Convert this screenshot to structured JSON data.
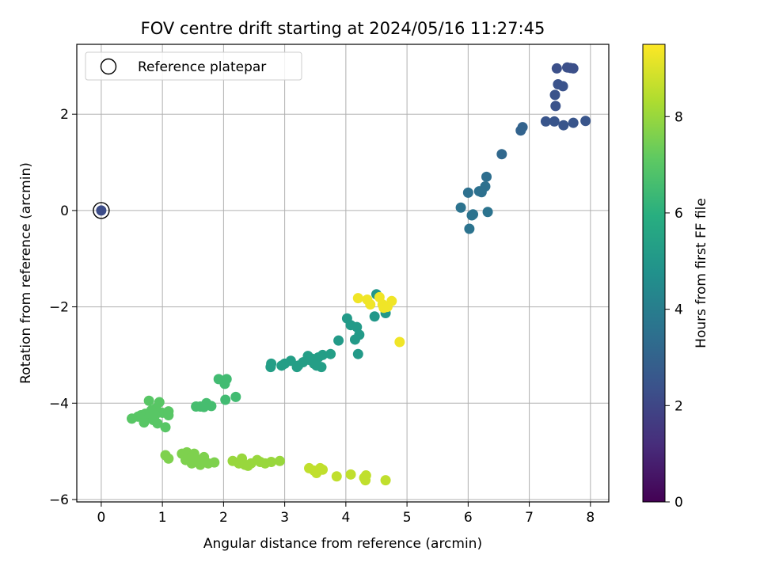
{
  "chart_data": {
    "type": "scatter",
    "title": "FOV centre drift starting at 2024/05/16 11:27:45",
    "xlabel": "Angular distance from reference (arcmin)",
    "ylabel": "Rotation from reference (arcmin)",
    "xlim": [
      -0.4,
      8.3
    ],
    "ylim": [
      -6.05,
      3.45
    ],
    "xticks": [
      0,
      1,
      2,
      3,
      4,
      5,
      6,
      7,
      8
    ],
    "yticks": [
      -6,
      -4,
      -2,
      0,
      2
    ],
    "grid": true,
    "legend": {
      "placement": "top-left",
      "entries": [
        "Reference platepar"
      ]
    },
    "colorbar": {
      "label": "Hours from first FF file",
      "range": [
        0,
        9.5
      ],
      "ticks": [
        0,
        2,
        4,
        6,
        8
      ],
      "colormap": "viridis"
    },
    "reference_point": {
      "x": 0,
      "y": 0,
      "hours": 2.2
    },
    "points": [
      [
        7.45,
        2.95,
        2.3
      ],
      [
        7.62,
        2.97,
        2.3
      ],
      [
        7.67,
        2.96,
        2.3
      ],
      [
        7.72,
        2.95,
        2.3
      ],
      [
        7.47,
        2.62,
        2.4
      ],
      [
        7.55,
        2.58,
        2.4
      ],
      [
        7.42,
        2.4,
        2.4
      ],
      [
        7.43,
        2.17,
        2.4
      ],
      [
        7.27,
        1.85,
        2.5
      ],
      [
        7.41,
        1.85,
        2.5
      ],
      [
        7.56,
        1.77,
        2.5
      ],
      [
        7.72,
        1.82,
        2.5
      ],
      [
        7.92,
        1.86,
        2.5
      ],
      [
        6.86,
        1.66,
        3.0
      ],
      [
        6.89,
        1.73,
        3.0
      ],
      [
        6.55,
        1.17,
        3.2
      ],
      [
        6.3,
        0.7,
        3.4
      ],
      [
        6.28,
        0.5,
        3.5
      ],
      [
        6.18,
        0.4,
        3.5
      ],
      [
        6.22,
        0.38,
        3.5
      ],
      [
        6.0,
        0.37,
        3.5
      ],
      [
        5.88,
        0.06,
        3.6
      ],
      [
        6.08,
        -0.08,
        3.6
      ],
      [
        6.06,
        -0.1,
        3.6
      ],
      [
        6.32,
        -0.03,
        3.6
      ],
      [
        6.02,
        -0.38,
        3.6
      ],
      [
        4.5,
        -1.74,
        5.0
      ],
      [
        4.65,
        -2.13,
        5.0
      ],
      [
        4.47,
        -2.2,
        5.0
      ],
      [
        4.02,
        -2.24,
        5.1
      ],
      [
        4.08,
        -2.38,
        5.1
      ],
      [
        4.18,
        -2.42,
        5.1
      ],
      [
        4.22,
        -2.58,
        5.1
      ],
      [
        4.15,
        -2.68,
        5.1
      ],
      [
        3.88,
        -2.7,
        5.1
      ],
      [
        4.2,
        -2.98,
        5.1
      ],
      [
        3.75,
        -2.98,
        5.3
      ],
      [
        3.62,
        -3.0,
        5.3
      ],
      [
        3.55,
        -3.05,
        5.3
      ],
      [
        3.45,
        -3.08,
        5.3
      ],
      [
        3.38,
        -3.02,
        5.3
      ],
      [
        3.3,
        -3.15,
        5.3
      ],
      [
        3.22,
        -3.22,
        5.3
      ],
      [
        3.1,
        -3.12,
        5.3
      ],
      [
        3.0,
        -3.18,
        5.3
      ],
      [
        2.95,
        -3.22,
        5.3
      ],
      [
        2.78,
        -3.18,
        5.3
      ],
      [
        2.77,
        -3.25,
        5.3
      ],
      [
        3.48,
        -3.18,
        5.3
      ],
      [
        3.52,
        -3.22,
        5.3
      ],
      [
        3.6,
        -3.25,
        5.3
      ],
      [
        3.2,
        -3.25,
        5.3
      ],
      [
        3.4,
        -3.1,
        5.3
      ],
      [
        1.92,
        -3.5,
        6.5
      ],
      [
        2.05,
        -3.5,
        6.5
      ],
      [
        2.02,
        -3.6,
        6.5
      ],
      [
        2.2,
        -3.87,
        6.5
      ],
      [
        2.03,
        -3.93,
        6.5
      ],
      [
        1.55,
        -4.07,
        6.6
      ],
      [
        1.62,
        -4.07,
        6.6
      ],
      [
        1.72,
        -4.0,
        6.6
      ],
      [
        1.8,
        -4.06,
        6.6
      ],
      [
        1.68,
        -4.08,
        6.6
      ],
      [
        0.78,
        -3.95,
        7.0
      ],
      [
        0.95,
        -3.98,
        7.0
      ],
      [
        0.9,
        -4.1,
        7.0
      ],
      [
        0.82,
        -4.15,
        7.0
      ],
      [
        1.0,
        -4.2,
        7.0
      ],
      [
        1.1,
        -4.17,
        7.0
      ],
      [
        0.72,
        -4.22,
        7.0
      ],
      [
        0.65,
        -4.25,
        7.0
      ],
      [
        0.6,
        -4.28,
        7.0
      ],
      [
        0.5,
        -4.32,
        7.0
      ],
      [
        0.78,
        -4.3,
        7.0
      ],
      [
        0.85,
        -4.35,
        7.0
      ],
      [
        0.92,
        -4.42,
        7.0
      ],
      [
        0.7,
        -4.4,
        7.0
      ],
      [
        1.05,
        -4.5,
        7.0
      ],
      [
        1.1,
        -4.25,
        7.0
      ],
      [
        0.88,
        -4.25,
        7.0
      ],
      [
        1.05,
        -5.08,
        7.6
      ],
      [
        1.1,
        -5.15,
        7.6
      ],
      [
        1.32,
        -5.05,
        7.6
      ],
      [
        1.4,
        -5.02,
        7.6
      ],
      [
        1.52,
        -5.05,
        7.6
      ],
      [
        1.45,
        -5.15,
        7.6
      ],
      [
        1.58,
        -5.18,
        7.6
      ],
      [
        1.68,
        -5.12,
        7.6
      ],
      [
        1.48,
        -5.25,
        7.6
      ],
      [
        1.62,
        -5.28,
        7.6
      ],
      [
        1.75,
        -5.25,
        7.6
      ],
      [
        1.85,
        -5.23,
        7.6
      ],
      [
        1.38,
        -5.18,
        7.6
      ],
      [
        2.15,
        -5.2,
        8.0
      ],
      [
        2.25,
        -5.25,
        8.0
      ],
      [
        2.3,
        -5.15,
        8.0
      ],
      [
        2.35,
        -5.28,
        8.0
      ],
      [
        2.45,
        -5.25,
        8.0
      ],
      [
        2.55,
        -5.18,
        8.0
      ],
      [
        2.6,
        -5.22,
        8.0
      ],
      [
        2.68,
        -5.25,
        8.0
      ],
      [
        2.78,
        -5.22,
        8.0
      ],
      [
        2.92,
        -5.2,
        8.0
      ],
      [
        2.4,
        -5.3,
        8.0
      ],
      [
        3.4,
        -5.35,
        8.6
      ],
      [
        3.48,
        -5.4,
        8.6
      ],
      [
        3.52,
        -5.45,
        8.6
      ],
      [
        3.58,
        -5.35,
        8.6
      ],
      [
        3.62,
        -5.38,
        8.6
      ],
      [
        3.85,
        -5.52,
        8.6
      ],
      [
        4.08,
        -5.48,
        8.6
      ],
      [
        4.3,
        -5.55,
        8.6
      ],
      [
        4.32,
        -5.6,
        8.6
      ],
      [
        4.33,
        -5.5,
        8.6
      ],
      [
        4.65,
        -5.6,
        8.6
      ],
      [
        4.2,
        -1.82,
        9.3
      ],
      [
        4.35,
        -1.85,
        9.3
      ],
      [
        4.4,
        -1.95,
        9.3
      ],
      [
        4.55,
        -1.8,
        9.3
      ],
      [
        4.6,
        -1.95,
        9.3
      ],
      [
        4.62,
        -2.02,
        9.3
      ],
      [
        4.68,
        -2.0,
        9.3
      ],
      [
        4.75,
        -1.88,
        9.3
      ],
      [
        4.88,
        -2.73,
        9.3
      ]
    ]
  }
}
